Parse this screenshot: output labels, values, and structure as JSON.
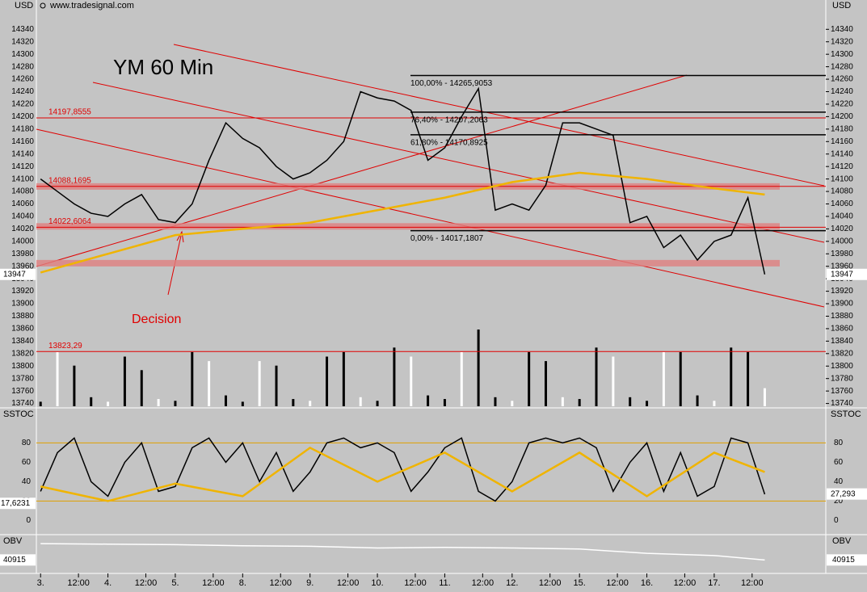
{
  "chart_data": [
    {
      "type": "line",
      "title": "YM 60 Min",
      "y_label": "USD",
      "source": "www.tradesignal.com",
      "annotation": "Decision",
      "x": [
        0,
        4,
        8,
        12,
        16,
        20,
        24,
        28,
        32,
        36,
        40,
        44,
        48,
        52,
        56,
        60,
        64,
        68,
        72,
        76,
        80,
        84,
        88,
        92,
        96,
        100,
        104,
        108,
        112,
        116,
        120,
        124,
        128,
        132,
        136,
        140,
        144,
        148,
        152,
        156,
        160,
        164,
        168,
        172
      ],
      "series": [
        {
          "color": "#000000",
          "values": [
            14100,
            14080,
            14060,
            14045,
            14040,
            14060,
            14075,
            14035,
            14030,
            14060,
            14130,
            14190,
            14165,
            14150,
            14120,
            14100,
            14110,
            14130,
            14160,
            14240,
            14230,
            14225,
            14210,
            14130,
            14150,
            14200,
            14245,
            14050,
            14060,
            14050,
            14090,
            14190,
            14190,
            14180,
            14170,
            14030,
            14040,
            13990,
            14010,
            13970,
            14000,
            14010,
            14070,
            13947
          ]
        },
        {
          "color": "#f0b400",
          "x": [
            0,
            16,
            32,
            48,
            64,
            80,
            96,
            112,
            128,
            144,
            160,
            172
          ],
          "values": [
            13950,
            13980,
            14010,
            14020,
            14030,
            14050,
            14070,
            14095,
            14110,
            14100,
            14085,
            14075
          ]
        }
      ],
      "volume": [
        5,
        60,
        45,
        10,
        5,
        55,
        40,
        8,
        6,
        60,
        50,
        12,
        5,
        50,
        45,
        8,
        6,
        55,
        60,
        10,
        6,
        65,
        55,
        12,
        8,
        60,
        85,
        10,
        6,
        60,
        50,
        10,
        8,
        65,
        55,
        10,
        6,
        60,
        60,
        12,
        6,
        65,
        60,
        20
      ],
      "levels": [
        {
          "value": 14197.8555,
          "label": "14197,8555"
        },
        {
          "value": 14088.1695,
          "label": "14088,1695"
        },
        {
          "value": 14022.6064,
          "label": "14022,6064"
        },
        {
          "value": 13823.29,
          "label": "13823,29"
        }
      ],
      "fib_levels": [
        {
          "value": 14265.9053,
          "label": "100,00% - 14265,9053"
        },
        {
          "value": 14207.2063,
          "label": "76,40% - 14207,2063"
        },
        {
          "value": 14170.8925,
          "label": "61,80% - 14170,8925"
        },
        {
          "value": 14017.1807,
          "label": "0,00% - 14017,1807"
        }
      ],
      "bands": [
        14088,
        14024,
        13965
      ],
      "last": 13947,
      "ylim": [
        13733,
        14387
      ],
      "yticks": [
        13740,
        13760,
        13780,
        13800,
        13820,
        13840,
        13860,
        13880,
        13900,
        13920,
        13940,
        13960,
        13980,
        14000,
        14020,
        14040,
        14060,
        14080,
        14100,
        14120,
        14140,
        14160,
        14180,
        14200,
        14220,
        14240,
        14260,
        14280,
        14300,
        14320,
        14340
      ],
      "xlim": [
        -1,
        186.5
      ],
      "xticks": [
        {
          "value": 0,
          "label": "3."
        },
        {
          "value": 9,
          "label": "12:00"
        },
        {
          "value": 16,
          "label": "4."
        },
        {
          "value": 25,
          "label": "12:00"
        },
        {
          "value": 32,
          "label": "5."
        },
        {
          "value": 41,
          "label": "12:00"
        },
        {
          "value": 48,
          "label": "8."
        },
        {
          "value": 57,
          "label": "12:00"
        },
        {
          "value": 64,
          "label": "9."
        },
        {
          "value": 73,
          "label": "12:00"
        },
        {
          "value": 80,
          "label": "10."
        },
        {
          "value": 89,
          "label": "12:00"
        },
        {
          "value": 96,
          "label": "11."
        },
        {
          "value": 105,
          "label": "12:00"
        },
        {
          "value": 112,
          "label": "12."
        },
        {
          "value": 121,
          "label": "12:00"
        },
        {
          "value": 128,
          "label": "15."
        },
        {
          "value": 137,
          "label": "12:00"
        },
        {
          "value": 144,
          "label": "16."
        },
        {
          "value": 153,
          "label": "12:00"
        },
        {
          "value": 160,
          "label": "17."
        },
        {
          "value": 169,
          "label": "12:00"
        }
      ]
    },
    {
      "type": "line",
      "y_label": "SSTOC",
      "x": [
        0,
        4,
        8,
        12,
        16,
        20,
        24,
        28,
        32,
        36,
        40,
        44,
        48,
        52,
        56,
        60,
        64,
        68,
        72,
        76,
        80,
        84,
        88,
        92,
        96,
        100,
        104,
        108,
        112,
        116,
        120,
        124,
        128,
        132,
        136,
        140,
        144,
        148,
        152,
        156,
        160,
        164,
        168,
        172
      ],
      "series": [
        {
          "color": "#000000",
          "values": [
            30,
            70,
            85,
            40,
            25,
            60,
            80,
            30,
            35,
            75,
            85,
            60,
            80,
            40,
            70,
            30,
            50,
            80,
            85,
            75,
            80,
            70,
            30,
            50,
            75,
            85,
            30,
            20,
            40,
            80,
            85,
            80,
            85,
            75,
            30,
            60,
            80,
            30,
            70,
            25,
            35,
            85,
            80,
            27
          ]
        },
        {
          "color": "#f0b400",
          "x": [
            0,
            16,
            32,
            48,
            64,
            80,
            96,
            112,
            128,
            144,
            160,
            172
          ],
          "values": [
            35,
            20,
            38,
            25,
            75,
            40,
            70,
            30,
            70,
            25,
            70,
            50
          ]
        }
      ],
      "levels": [
        20,
        80
      ],
      "left_marker": {
        "value": 17.6231,
        "label": "17,6231"
      },
      "right_marker": {
        "value": 27.293,
        "label": "27,293"
      },
      "ylim": [
        -13,
        112
      ],
      "yticks": [
        0,
        20,
        40,
        60,
        80
      ]
    },
    {
      "type": "line",
      "y_label": "OBV",
      "x": [
        0,
        16,
        32,
        48,
        64,
        80,
        96,
        112,
        128,
        144,
        160,
        172
      ],
      "series": [
        {
          "color": "#ffffff",
          "values": [
            56000,
            55500,
            55000,
            54000,
            53500,
            52000,
            52500,
            52000,
            51000,
            47000,
            45000,
            40915
          ]
        }
      ],
      "last": 40915,
      "ylim": [
        30000,
        62000
      ]
    }
  ]
}
